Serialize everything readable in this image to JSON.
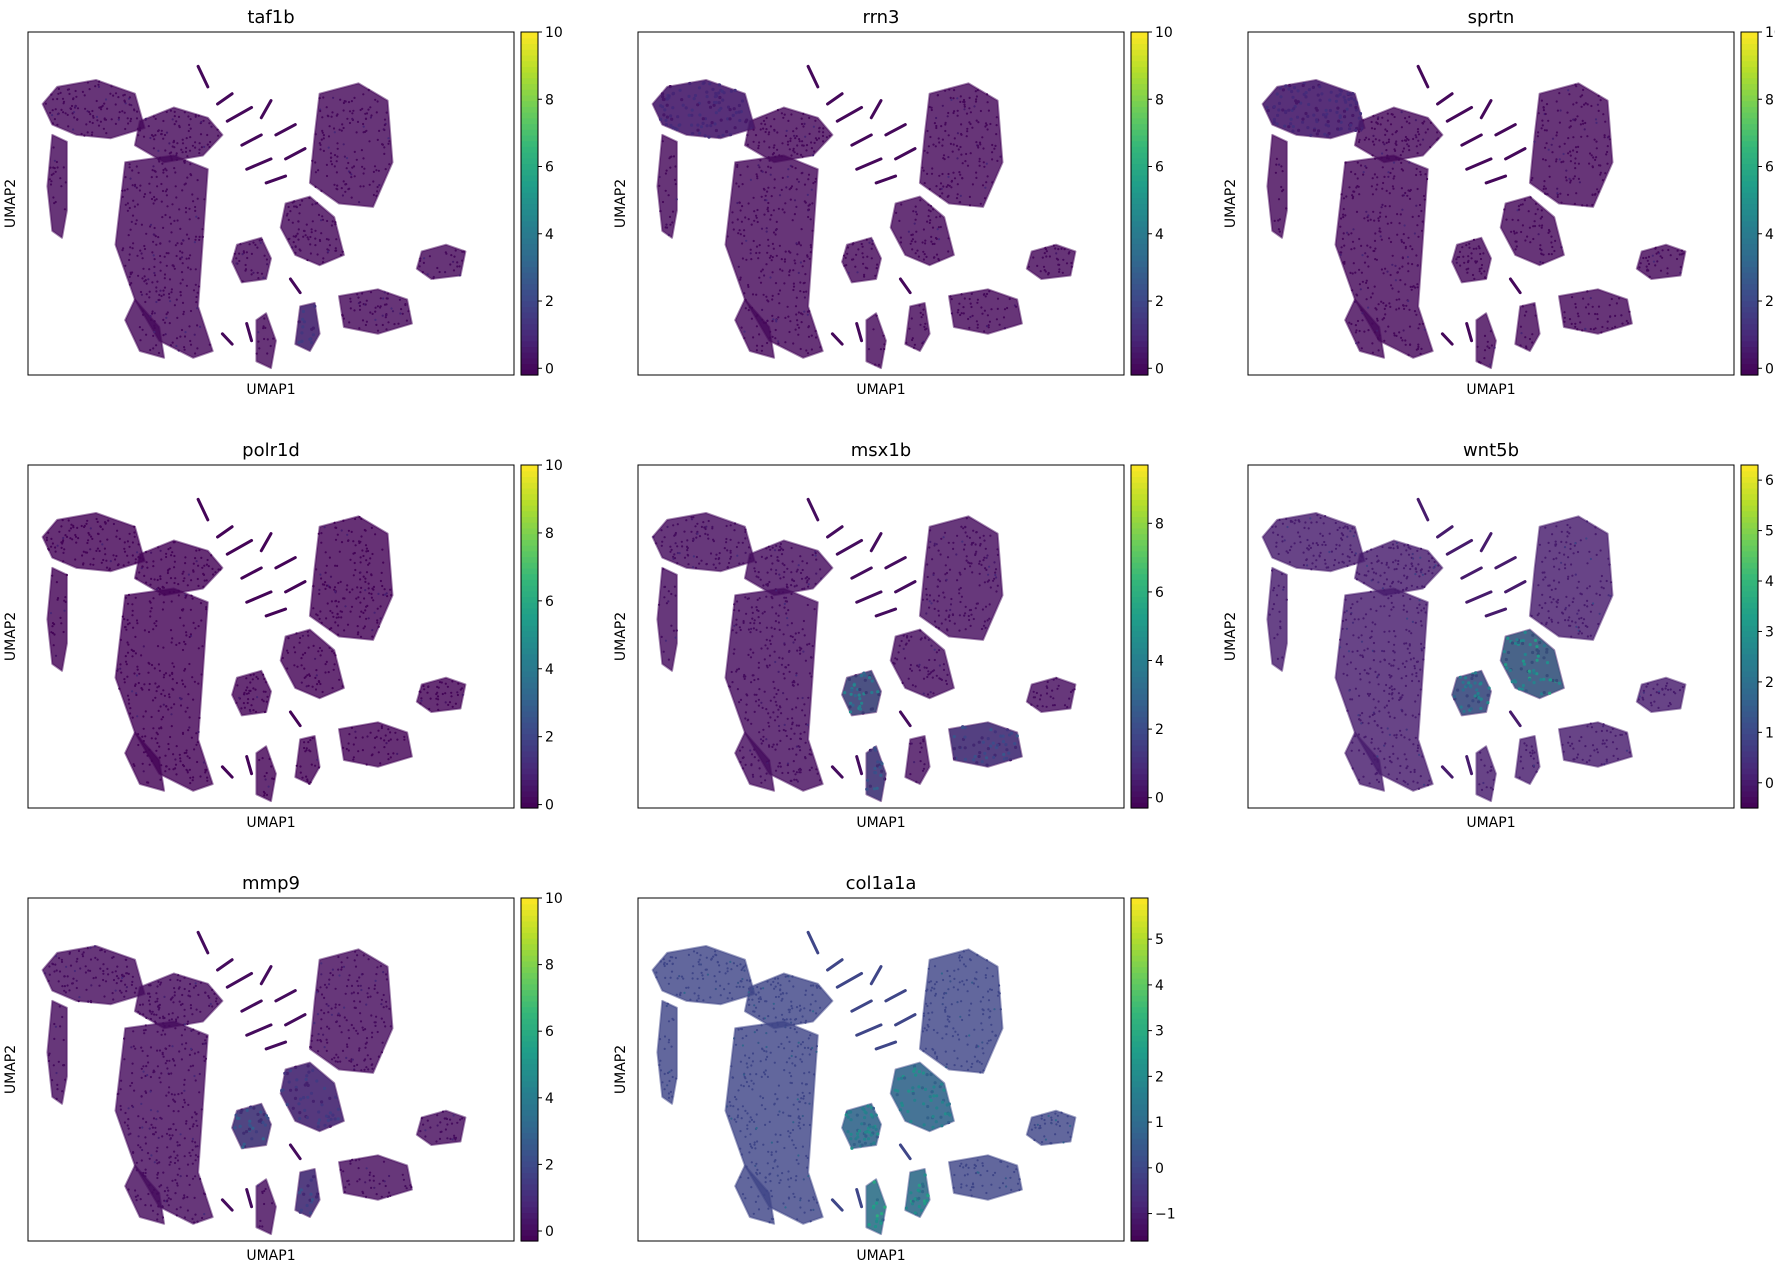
{
  "figure": {
    "layout": "3x3 grid, 8 panels",
    "background": "#ffffff",
    "colormap": "viridis",
    "colormap_stops": [
      "#440154",
      "#482878",
      "#3e4989",
      "#31688e",
      "#26828e",
      "#1f9e89",
      "#35b779",
      "#6ece58",
      "#b5de2b",
      "#fde725"
    ],
    "point_base_color": "#440154"
  },
  "chart_data": [
    {
      "type": "scatter",
      "title": "taf1b",
      "xlabel": "UMAP1",
      "ylabel": "UMAP2",
      "colorbar": {
        "range": [
          -0.2,
          10
        ],
        "ticks": [
          0,
          2,
          4,
          6,
          8,
          10
        ],
        "tick_labels": [
          "0",
          "2",
          "4",
          "6",
          "8",
          "10"
        ]
      },
      "baseline_value": 0,
      "highlight_regions": [
        {
          "cluster": "lower-mid-small",
          "level": 1.5
        }
      ]
    },
    {
      "type": "scatter",
      "title": "rrn3",
      "xlabel": "UMAP1",
      "ylabel": "UMAP2",
      "colorbar": {
        "range": [
          -0.2,
          10
        ],
        "ticks": [
          0,
          2,
          4,
          6,
          8,
          10
        ],
        "tick_labels": [
          "0",
          "2",
          "4",
          "6",
          "8",
          "10"
        ]
      },
      "baseline_value": 0,
      "highlight_regions": [
        {
          "cluster": "upper-left-arm",
          "level": 1
        }
      ]
    },
    {
      "type": "scatter",
      "title": "sprtn",
      "xlabel": "UMAP1",
      "ylabel": "UMAP2",
      "colorbar": {
        "range": [
          -0.2,
          10
        ],
        "ticks": [
          0,
          2,
          4,
          6,
          8,
          10
        ],
        "tick_labels": [
          "0",
          "2",
          "4",
          "6",
          "8",
          "10"
        ]
      },
      "baseline_value": 0,
      "highlight_regions": [
        {
          "cluster": "upper-left-arm",
          "level": 1
        }
      ]
    },
    {
      "type": "scatter",
      "title": "polr1d",
      "xlabel": "UMAP1",
      "ylabel": "UMAP2",
      "colorbar": {
        "range": [
          -0.1,
          10
        ],
        "ticks": [
          0,
          2,
          4,
          6,
          8,
          10
        ],
        "tick_labels": [
          "0",
          "2",
          "4",
          "6",
          "8",
          "10"
        ]
      },
      "baseline_value": 0,
      "highlight_regions": []
    },
    {
      "type": "scatter",
      "title": "msx1b",
      "xlabel": "UMAP1",
      "ylabel": "UMAP2",
      "colorbar": {
        "range": [
          -0.3,
          9.7
        ],
        "ticks": [
          0,
          2,
          4,
          6,
          8
        ],
        "tick_labels": [
          "0",
          "2",
          "4",
          "6",
          "8"
        ]
      },
      "baseline_value": 0,
      "highlight_regions": [
        {
          "cluster": "center-small",
          "level": 3.5
        },
        {
          "cluster": "bottom-center-pillar",
          "level": 2.5
        },
        {
          "cluster": "lower-right-blob",
          "level": 2
        }
      ]
    },
    {
      "type": "scatter",
      "title": "wnt5b",
      "xlabel": "UMAP1",
      "ylabel": "UMAP2",
      "colorbar": {
        "range": [
          -0.5,
          6.3
        ],
        "ticks": [
          0,
          1,
          2,
          3,
          4,
          5,
          6
        ],
        "tick_labels": [
          "0",
          "1",
          "2",
          "3",
          "4",
          "5",
          "6"
        ]
      },
      "baseline_value": 0,
      "highlight_regions": [
        {
          "cluster": "center-medium",
          "level": 2.8
        },
        {
          "cluster": "center-small",
          "level": 2.2
        }
      ]
    },
    {
      "type": "scatter",
      "title": "mmp9",
      "xlabel": "UMAP1",
      "ylabel": "UMAP2",
      "colorbar": {
        "range": [
          -0.3,
          10
        ],
        "ticks": [
          0,
          2,
          4,
          6,
          8,
          10
        ],
        "tick_labels": [
          "0",
          "2",
          "4",
          "6",
          "8",
          "10"
        ]
      },
      "baseline_value": 0,
      "highlight_regions": [
        {
          "cluster": "center-small",
          "level": 2.5
        },
        {
          "cluster": "center-medium",
          "level": 1.5
        },
        {
          "cluster": "lower-mid-small",
          "level": 2
        }
      ]
    },
    {
      "type": "scatter",
      "title": "col1a1a",
      "xlabel": "UMAP1",
      "ylabel": "UMAP2",
      "colorbar": {
        "range": [
          -1.6,
          5.9
        ],
        "ticks": [
          -1,
          0,
          1,
          2,
          3,
          4,
          5
        ],
        "tick_labels": [
          "−1",
          "0",
          "1",
          "2",
          "3",
          "4",
          "5"
        ]
      },
      "baseline_value": 0,
      "highlight_regions": [
        {
          "cluster": "center-medium",
          "level": 1.8
        },
        {
          "cluster": "center-small",
          "level": 1.8
        },
        {
          "cluster": "lower-mid-small",
          "level": 2.2
        },
        {
          "cluster": "bottom-center-pillar",
          "level": 2.5
        }
      ]
    }
  ]
}
